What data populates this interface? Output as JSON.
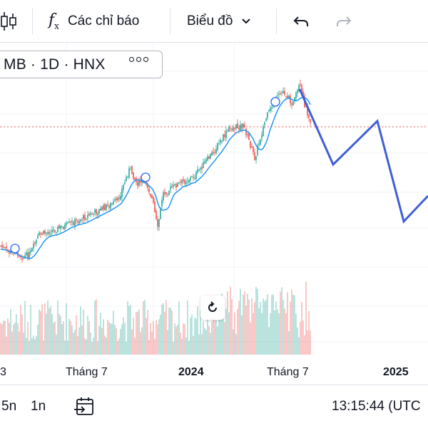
{
  "toolbar": {
    "indicators_label": "Các chỉ báo",
    "chart_type_label": "Biểu đồ"
  },
  "symbol": {
    "text": "MB · 1D · HNX"
  },
  "time_axis": {
    "labels": [
      "3",
      "Tháng 7",
      "2024",
      "Tháng 7",
      "2025"
    ]
  },
  "bottom_bar": {
    "range_5n": "5n",
    "range_1n": "1n",
    "time": "13:15:44 (UTC"
  },
  "colors": {
    "up": "#26a69a",
    "down": "#ef5350",
    "ma_line": "#2196f3",
    "projection": "#3f5fd8",
    "price_line": "#ef5350"
  },
  "chart_data": {
    "type": "line",
    "projection_drawn": true
  }
}
